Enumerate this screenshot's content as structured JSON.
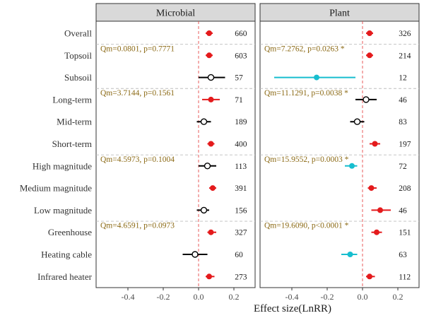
{
  "chart_data": {
    "type": "forest",
    "xlabel": "Effect size(LnRR)",
    "xlim": [
      -0.58,
      0.32
    ],
    "xticks": [
      -0.4,
      -0.2,
      0.0,
      0.2
    ],
    "xtick_labels": [
      "-0.4",
      "-0.2",
      "0.0",
      "0.2"
    ],
    "categories": [
      "Overall",
      "Topsoil",
      "Subsoil",
      "Long-term",
      "Mid-term",
      "Short-term",
      "High magnitude",
      "Medium magnitude",
      "Low magnitude",
      "Greenhouse",
      "Heating cable",
      "Infrared heater"
    ],
    "group_separators_after": [
      "Overall",
      "Subsoil",
      "Short-term",
      "Low magnitude"
    ],
    "colors": {
      "positive": "#e41a1c",
      "negative": "#17becf",
      "ns": "#000000",
      "qm": "#8B6914",
      "zero": "#e84a4a"
    },
    "panels": [
      {
        "title": "Microbial",
        "rows": [
          {
            "category": "Overall",
            "mean": 0.06,
            "lo": 0.04,
            "hi": 0.08,
            "n": "660",
            "sig": "pos"
          },
          {
            "category": "Topsoil",
            "mean": 0.06,
            "lo": 0.04,
            "hi": 0.08,
            "n": "603",
            "sig": "pos"
          },
          {
            "category": "Subsoil",
            "mean": 0.07,
            "lo": 0.0,
            "hi": 0.15,
            "n": "57",
            "sig": "ns"
          },
          {
            "category": "Long-term",
            "mean": 0.07,
            "lo": 0.02,
            "hi": 0.12,
            "n": "71",
            "sig": "pos"
          },
          {
            "category": "Mid-term",
            "mean": 0.03,
            "lo": -0.01,
            "hi": 0.07,
            "n": "189",
            "sig": "ns"
          },
          {
            "category": "Short-term",
            "mean": 0.07,
            "lo": 0.05,
            "hi": 0.09,
            "n": "400",
            "sig": "pos"
          },
          {
            "category": "High magnitude",
            "mean": 0.05,
            "lo": 0.0,
            "hi": 0.1,
            "n": "113",
            "sig": "ns"
          },
          {
            "category": "Medium magnitude",
            "mean": 0.08,
            "lo": 0.06,
            "hi": 0.1,
            "n": "391",
            "sig": "pos"
          },
          {
            "category": "Low magnitude",
            "mean": 0.03,
            "lo": -0.01,
            "hi": 0.06,
            "n": "156",
            "sig": "ns"
          },
          {
            "category": "Greenhouse",
            "mean": 0.07,
            "lo": 0.05,
            "hi": 0.1,
            "n": "327",
            "sig": "pos"
          },
          {
            "category": "Heating cable",
            "mean": -0.02,
            "lo": -0.09,
            "hi": 0.05,
            "n": "60",
            "sig": "ns"
          },
          {
            "category": "Infrared heater",
            "mean": 0.06,
            "lo": 0.04,
            "hi": 0.09,
            "n": "273",
            "sig": "pos"
          }
        ],
        "annotations": [
          {
            "row": "Topsoil",
            "text": "Qm=0.0801, p=0.7771"
          },
          {
            "row": "Long-term",
            "text": "Qm=3.7144, p=0.1561"
          },
          {
            "row": "High magnitude",
            "text": "Qm=4.5973, p=0.1004"
          },
          {
            "row": "Greenhouse",
            "text": "Qm=4.6591, p=0.0973"
          }
        ]
      },
      {
        "title": "Plant",
        "rows": [
          {
            "category": "Overall",
            "mean": 0.04,
            "lo": 0.02,
            "hi": 0.06,
            "n": "326",
            "sig": "pos"
          },
          {
            "category": "Topsoil",
            "mean": 0.04,
            "lo": 0.02,
            "hi": 0.06,
            "n": "214",
            "sig": "pos"
          },
          {
            "category": "Subsoil",
            "mean": -0.26,
            "lo": -0.5,
            "hi": -0.04,
            "n": "12",
            "sig": "neg"
          },
          {
            "category": "Long-term",
            "mean": 0.02,
            "lo": -0.04,
            "hi": 0.08,
            "n": "46",
            "sig": "ns"
          },
          {
            "category": "Mid-term",
            "mean": -0.03,
            "lo": -0.07,
            "hi": 0.01,
            "n": "83",
            "sig": "ns"
          },
          {
            "category": "Short-term",
            "mean": 0.07,
            "lo": 0.04,
            "hi": 0.1,
            "n": "197",
            "sig": "pos"
          },
          {
            "category": "High magnitude",
            "mean": -0.06,
            "lo": -0.1,
            "hi": -0.03,
            "n": "72",
            "sig": "neg"
          },
          {
            "category": "Medium magnitude",
            "mean": 0.05,
            "lo": 0.03,
            "hi": 0.08,
            "n": "208",
            "sig": "pos"
          },
          {
            "category": "Low magnitude",
            "mean": 0.1,
            "lo": 0.05,
            "hi": 0.16,
            "n": "46",
            "sig": "pos"
          },
          {
            "category": "Greenhouse",
            "mean": 0.08,
            "lo": 0.05,
            "hi": 0.11,
            "n": "151",
            "sig": "pos"
          },
          {
            "category": "Heating cable",
            "mean": -0.07,
            "lo": -0.12,
            "hi": -0.03,
            "n": "63",
            "sig": "neg"
          },
          {
            "category": "Infrared heater",
            "mean": 0.04,
            "lo": 0.02,
            "hi": 0.07,
            "n": "112",
            "sig": "pos"
          }
        ],
        "annotations": [
          {
            "row": "Topsoil",
            "text": "Qm=7.2762, p=0.0263 *"
          },
          {
            "row": "Long-term",
            "text": "Qm=11.1291, p=0.0038 *"
          },
          {
            "row": "High magnitude",
            "text": "Qm=15.9552, p=0.0003 *"
          },
          {
            "row": "Greenhouse",
            "text": "Qm=19.6090, p<0.0001 *"
          }
        ]
      }
    ]
  }
}
